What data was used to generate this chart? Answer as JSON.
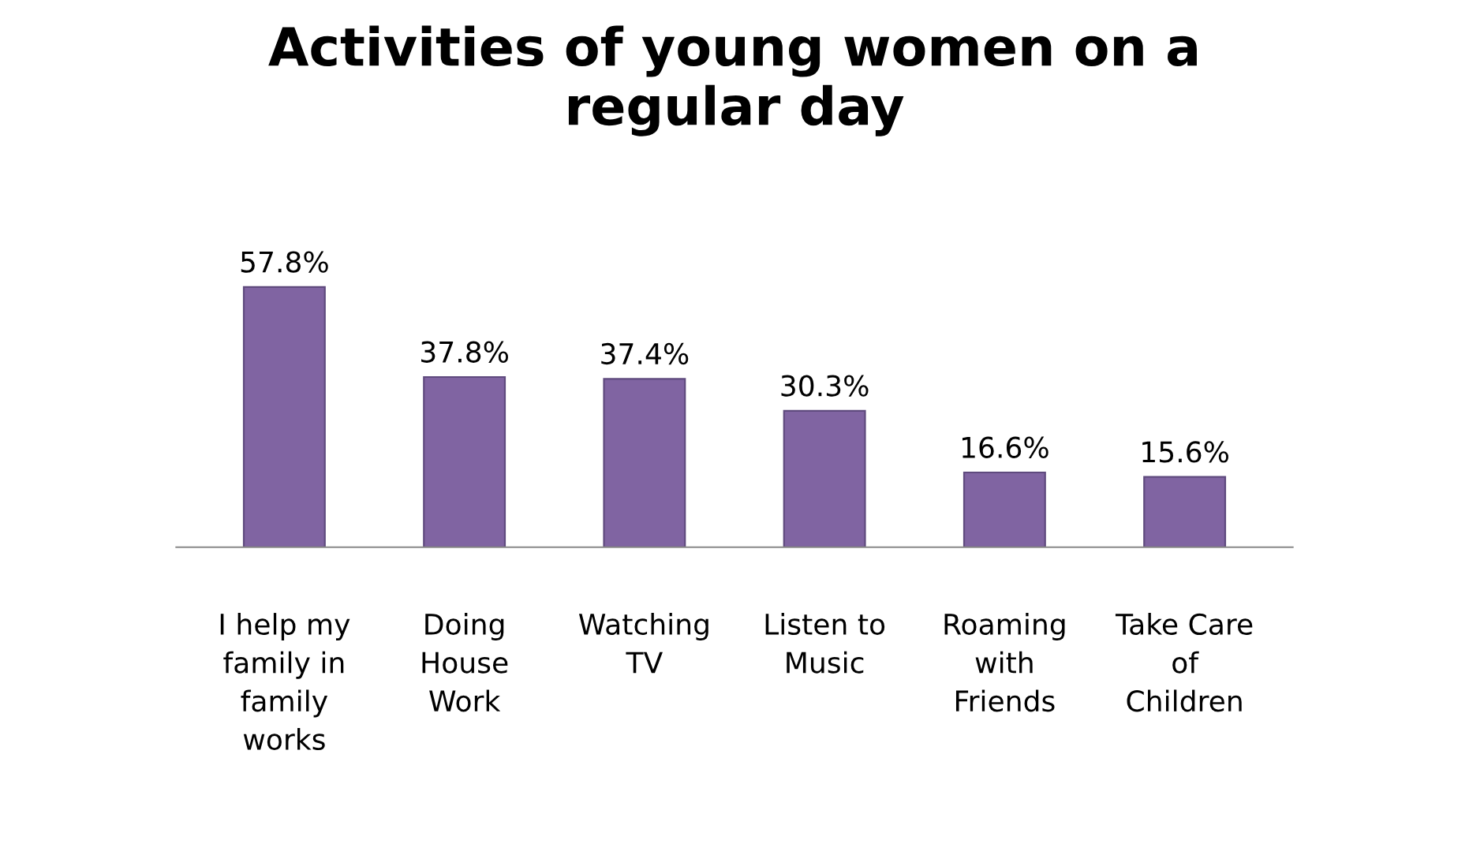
{
  "chart_data": {
    "type": "bar",
    "title": "Activities of young women on a\nregular day",
    "categories": [
      "I help my\nfamily in\nfamily\nworks",
      "Doing\nHouse\nWork",
      "Watching\nTV",
      "Listen to\nMusic",
      "Roaming\nwith\nFriends",
      "Take Care\nof\nChildren"
    ],
    "values": [
      57.8,
      37.8,
      37.4,
      30.3,
      16.6,
      15.6
    ],
    "value_labels": [
      "57.8%",
      "37.8%",
      "37.4%",
      "30.3%",
      "16.6%",
      "15.6%"
    ],
    "color": "#8064a2"
  }
}
